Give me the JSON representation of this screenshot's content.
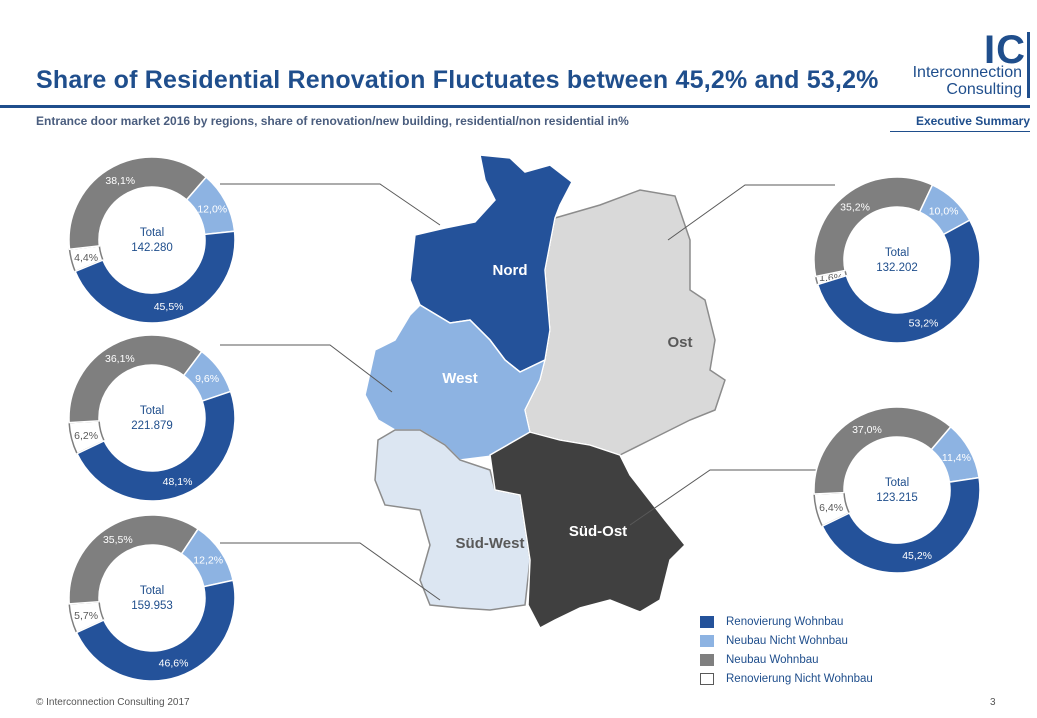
{
  "header": {
    "title": "Share of Residential Renovation Fluctuates between 45,2% and 53,2%",
    "subtitle": "Entrance door market 2016 by regions, share of renovation/new building, residential/non residential in%",
    "section": "Executive Summary"
  },
  "logo": {
    "mark": "IC",
    "line1": "Interconnection",
    "line2": "Consulting"
  },
  "footer": {
    "copyright": "© Interconnection Consulting 2017",
    "page": "3"
  },
  "colors": {
    "renovierung_wohnbau": "#24529a",
    "neubau_nicht_wohnbau": "#8db3e2",
    "neubau_wohnbau": "#7f7f7f",
    "renovierung_nicht_wohnbau": "#ffffff",
    "nord": "#24529a",
    "west": "#8db3e2",
    "sued_west": "#dce6f2",
    "sued_ost": "#404040",
    "ost": "#d9d9d9"
  },
  "map": {
    "regions": [
      "Nord",
      "West",
      "Süd-West",
      "Süd-Ost",
      "Ost"
    ]
  },
  "chart_data": [
    {
      "type": "pie",
      "region": "Nord",
      "total_label": "Total",
      "total": "142.280",
      "slices": [
        {
          "category": "Renovierung Wohnbau",
          "value": 45.5,
          "label": "45,5%"
        },
        {
          "category": "Neubau Nicht Wohnbau",
          "value": 12.0,
          "label": "12,0%"
        },
        {
          "category": "Neubau Wohnbau",
          "value": 38.1,
          "label": "38,1%"
        },
        {
          "category": "Renovierung Nicht Wohnbau",
          "value": 4.4,
          "label": "4,4%"
        }
      ]
    },
    {
      "type": "pie",
      "region": "West",
      "total_label": "Total",
      "total": "221.879",
      "slices": [
        {
          "category": "Renovierung Wohnbau",
          "value": 48.1,
          "label": "48,1%"
        },
        {
          "category": "Neubau Nicht Wohnbau",
          "value": 9.6,
          "label": "9,6%"
        },
        {
          "category": "Neubau Wohnbau",
          "value": 36.1,
          "label": "36,1%"
        },
        {
          "category": "Renovierung Nicht Wohnbau",
          "value": 6.2,
          "label": "6,2%"
        }
      ]
    },
    {
      "type": "pie",
      "region": "Süd-West",
      "total_label": "Total",
      "total": "159.953",
      "slices": [
        {
          "category": "Renovierung Wohnbau",
          "value": 46.6,
          "label": "46,6%"
        },
        {
          "category": "Neubau Nicht Wohnbau",
          "value": 12.2,
          "label": "12,2%"
        },
        {
          "category": "Neubau Wohnbau",
          "value": 35.5,
          "label": "35,5%"
        },
        {
          "category": "Renovierung Nicht Wohnbau",
          "value": 5.7,
          "label": "5,7%"
        }
      ]
    },
    {
      "type": "pie",
      "region": "Ost",
      "total_label": "Total",
      "total": "132.202",
      "slices": [
        {
          "category": "Renovierung Wohnbau",
          "value": 53.2,
          "label": "53,2%"
        },
        {
          "category": "Neubau Nicht Wohnbau",
          "value": 10.0,
          "label": "10,0%"
        },
        {
          "category": "Neubau Wohnbau",
          "value": 35.2,
          "label": "35,2%"
        },
        {
          "category": "Renovierung Nicht Wohnbau",
          "value": 1.6,
          "label": "1,6%"
        }
      ]
    },
    {
      "type": "pie",
      "region": "Süd-Ost",
      "total_label": "Total",
      "total": "123.215",
      "slices": [
        {
          "category": "Renovierung Wohnbau",
          "value": 45.2,
          "label": "45,2%"
        },
        {
          "category": "Neubau Nicht Wohnbau",
          "value": 11.4,
          "label": "11,4%"
        },
        {
          "category": "Neubau Wohnbau",
          "value": 37.0,
          "label": "37,0%"
        },
        {
          "category": "Renovierung Nicht Wohnbau",
          "value": 6.4,
          "label": "6,4%"
        }
      ]
    }
  ],
  "legend": [
    {
      "label": "Renovierung Wohnbau",
      "color": "#24529a"
    },
    {
      "label": "Neubau Nicht Wohnbau",
      "color": "#8db3e2"
    },
    {
      "label": "Neubau Wohnbau",
      "color": "#7f7f7f"
    },
    {
      "label": "Renovierung Nicht Wohnbau",
      "color": "#ffffff"
    }
  ]
}
